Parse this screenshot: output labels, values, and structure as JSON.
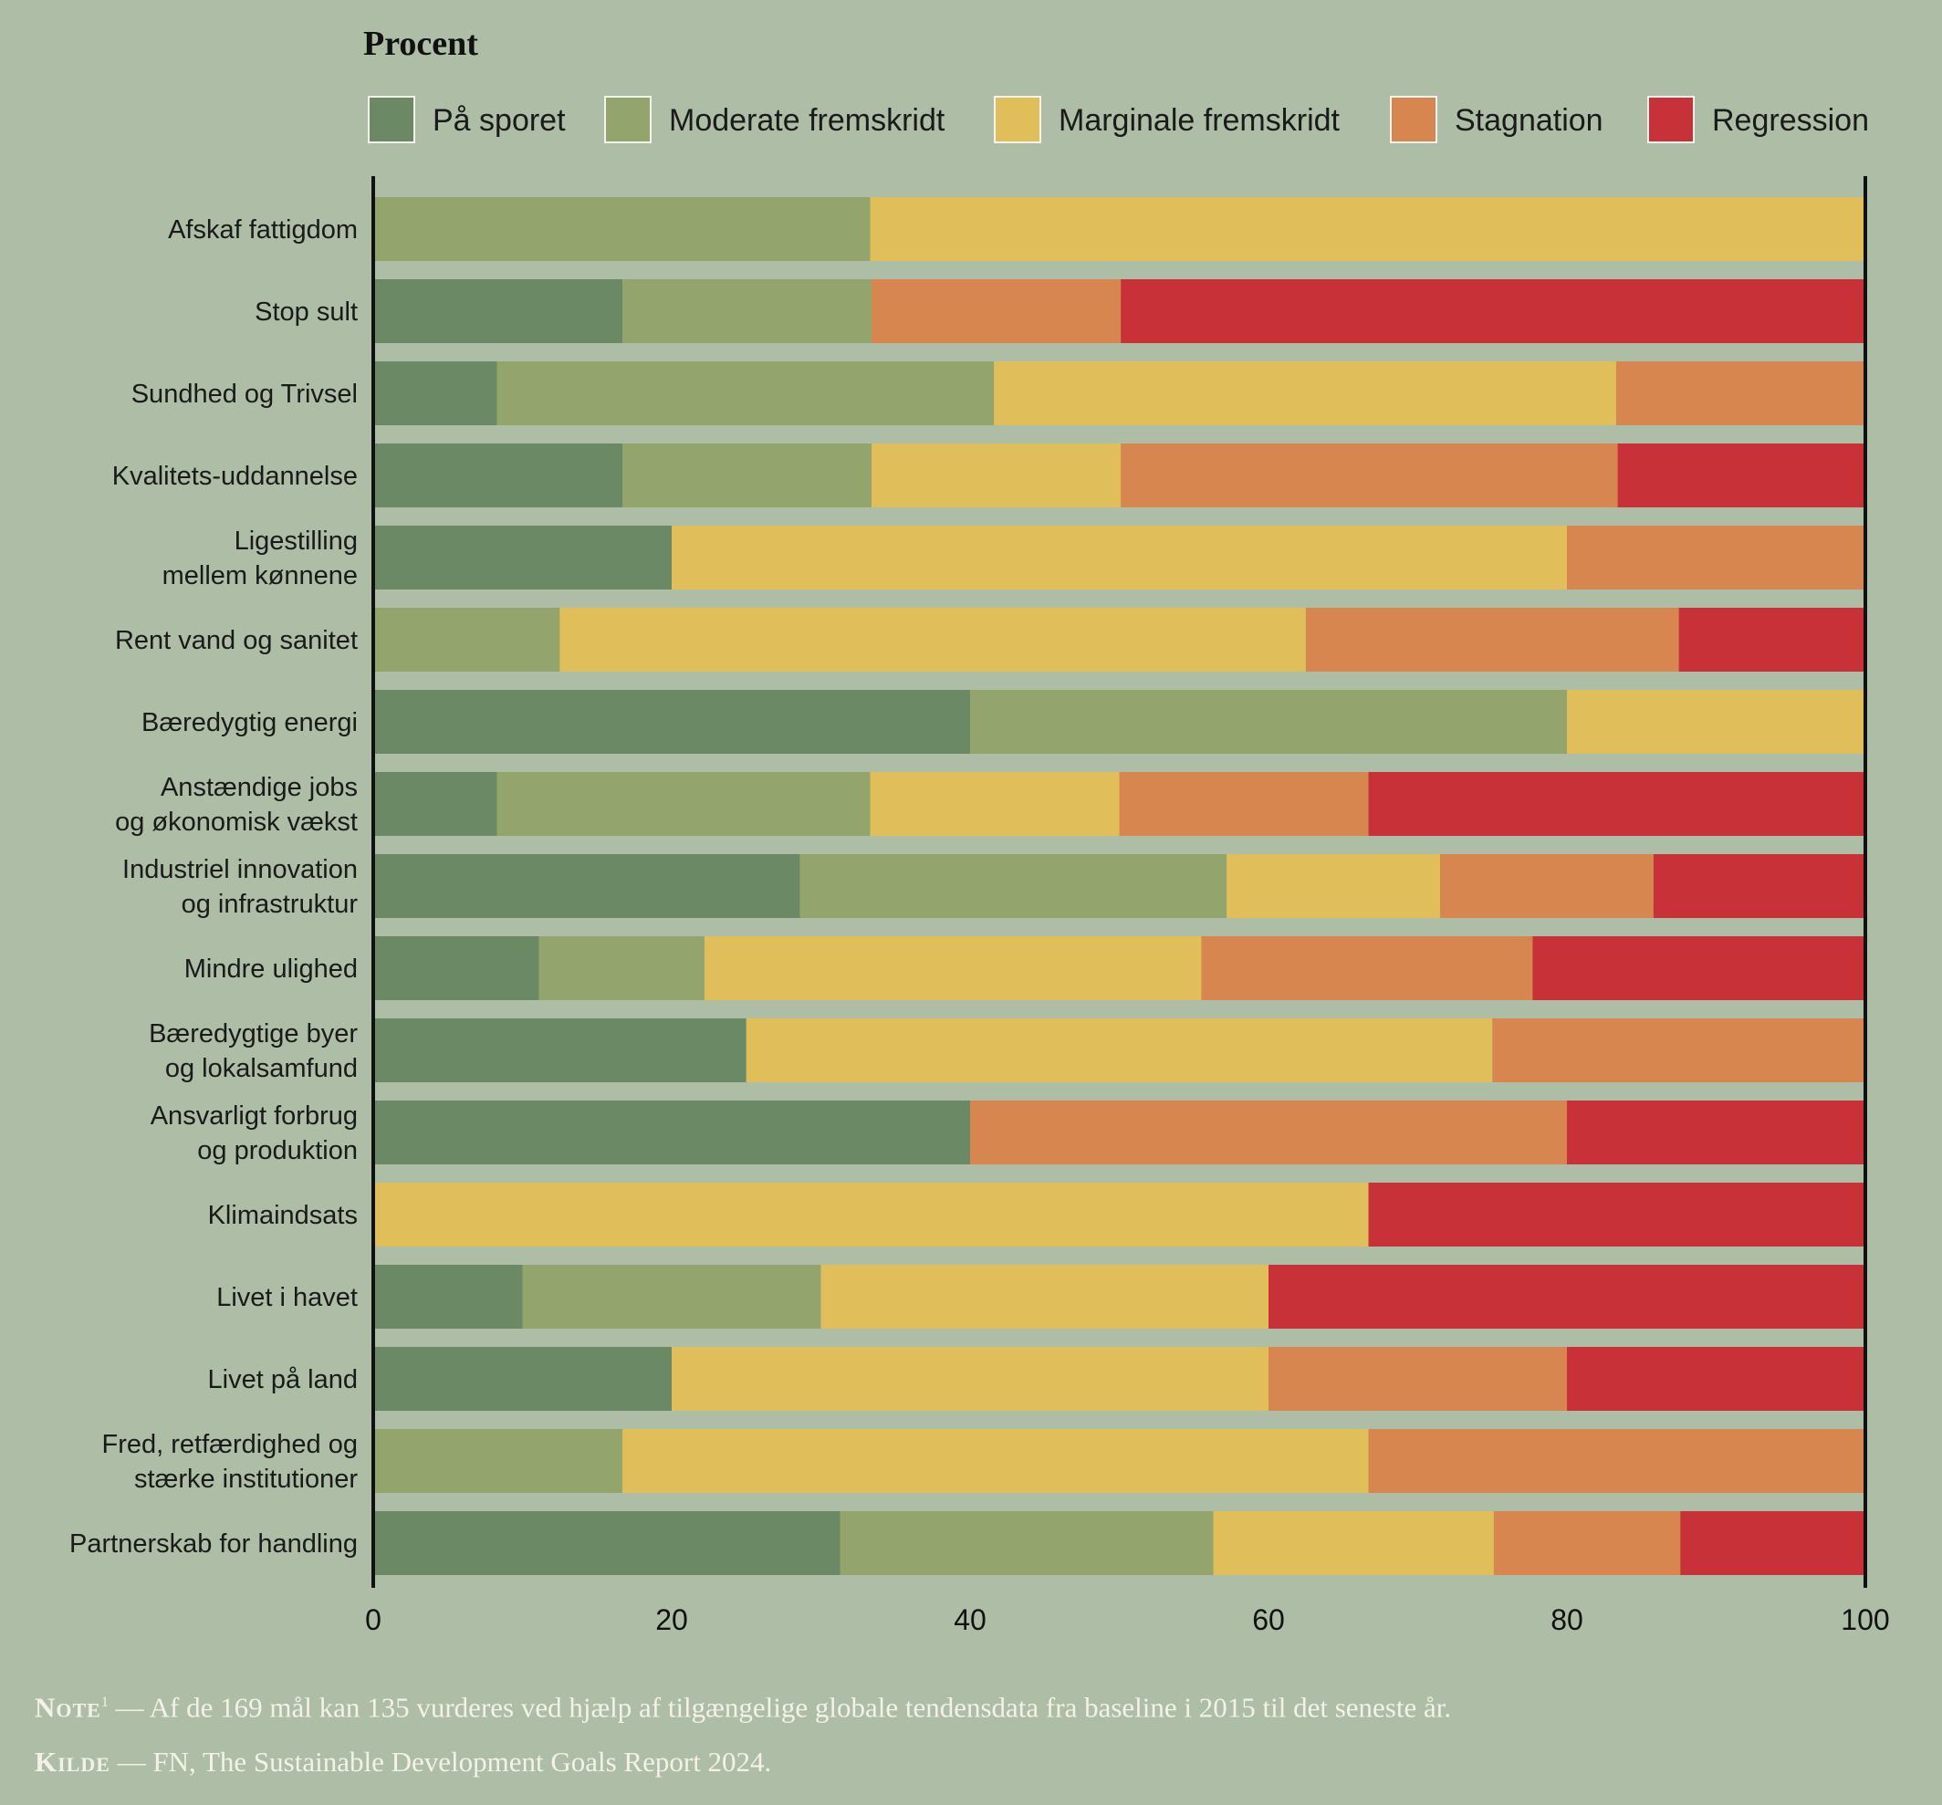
{
  "chart_data": {
    "type": "bar",
    "orientation": "horizontal",
    "stacked": true,
    "title": "Procent",
    "xlim": [
      0,
      100
    ],
    "xticks": [
      0,
      20,
      40,
      60,
      80,
      100
    ],
    "legend_position": "top",
    "categories": [
      [
        "Afskaf fattigdom"
      ],
      [
        "Stop sult"
      ],
      [
        "Sundhed og Trivsel"
      ],
      [
        "Kvalitets-uddannelse"
      ],
      [
        "Ligestilling",
        "mellem kønnene"
      ],
      [
        "Rent vand og sanitet"
      ],
      [
        "Bæredygtig energi"
      ],
      [
        "Anstændige jobs",
        "og økonomisk vækst"
      ],
      [
        "Industriel innovation",
        "og infrastruktur"
      ],
      [
        "Mindre ulighed"
      ],
      [
        "Bæredygtige byer",
        "og lokalsamfund"
      ],
      [
        "Ansvarligt forbrug",
        "og produktion"
      ],
      [
        "Klimaindsats"
      ],
      [
        "Livet i havet"
      ],
      [
        "Livet på land"
      ],
      [
        "Fred, retfærdighed og",
        "stærke institutioner"
      ],
      [
        "Partnerskab for handling"
      ]
    ],
    "series": [
      {
        "name": "På sporet",
        "color": "#6a8964",
        "values": [
          0,
          16.7,
          8.3,
          16.7,
          20,
          0,
          40,
          8.3,
          28.6,
          11.1,
          25,
          40,
          0,
          10,
          20,
          0,
          31.3
        ]
      },
      {
        "name": "Moderate fremskridt",
        "color": "#93a46d",
        "values": [
          33.3,
          16.7,
          33.3,
          16.7,
          0,
          12.5,
          40,
          25,
          28.6,
          11.1,
          0,
          0,
          0,
          20,
          0,
          16.7,
          25
        ]
      },
      {
        "name": "Marginale fremskridt",
        "color": "#e0bf5a",
        "values": [
          66.7,
          0,
          41.7,
          16.7,
          60,
          50,
          20,
          16.7,
          14.3,
          33.3,
          50,
          0,
          66.7,
          30,
          40,
          50,
          18.8
        ]
      },
      {
        "name": "Stagnation",
        "color": "#d88650",
        "values": [
          0,
          16.7,
          16.7,
          33.3,
          20,
          25,
          0,
          16.7,
          14.3,
          22.2,
          25,
          40,
          0,
          0,
          20,
          33.3,
          12.5
        ]
      },
      {
        "name": "Regression",
        "color": "#c73137",
        "values": [
          0,
          50,
          0,
          16.7,
          0,
          12.5,
          0,
          33.3,
          14.3,
          22.2,
          0,
          20,
          33.3,
          40,
          20,
          0,
          12.5
        ]
      }
    ]
  },
  "footer": {
    "note_label": "Note",
    "note_sup": "1",
    "note_text": " — Af de 169 mål kan 135 vurderes ved hjælp af tilgængelige globale tendensdata fra baseline i 2015 til det seneste år.",
    "source_label": "Kilde",
    "source_text": " — FN, The Sustainable Development Goals Report 2024."
  }
}
